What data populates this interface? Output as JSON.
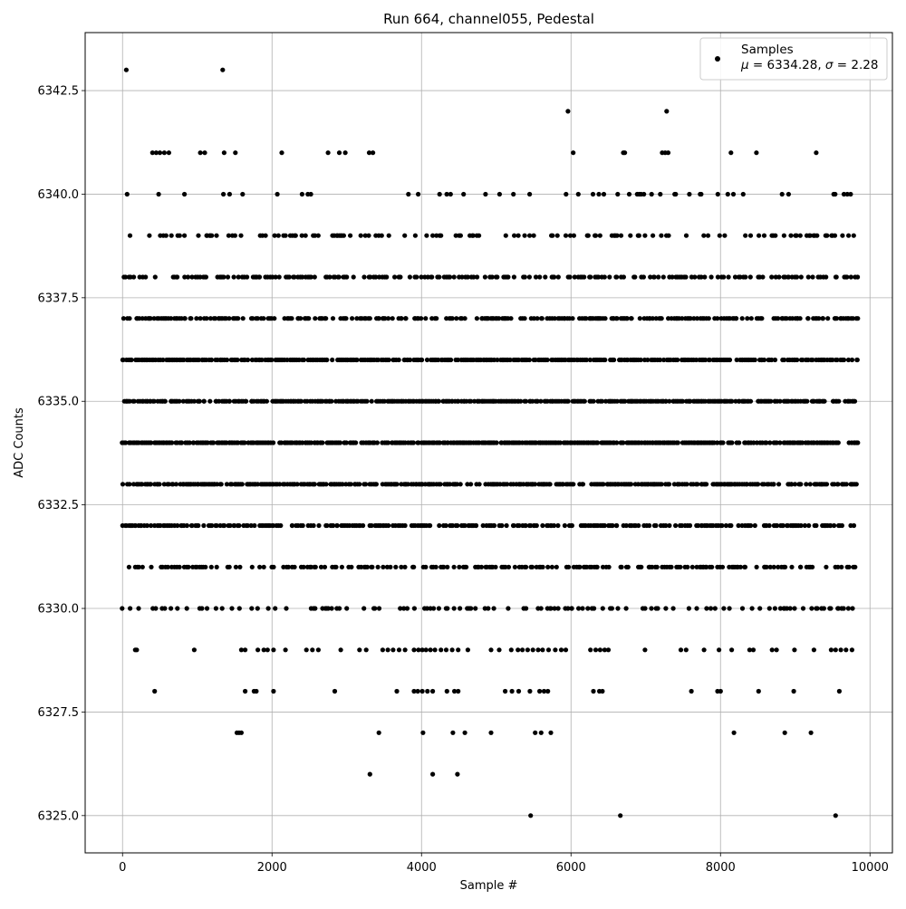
{
  "chart_data": {
    "type": "scatter",
    "title": "Run 664, channel055, Pedestal",
    "xlabel": "Sample #",
    "ylabel": "ADC Counts",
    "xlim": [
      -500,
      10300
    ],
    "ylim": [
      6324.1,
      6343.9
    ],
    "xticks": [
      0,
      2000,
      4000,
      6000,
      8000,
      10000
    ],
    "xtick_labels": [
      "0",
      "2000",
      "4000",
      "6000",
      "8000",
      "10000"
    ],
    "yticks": [
      6325.0,
      6327.5,
      6330.0,
      6332.5,
      6335.0,
      6337.5,
      6340.0,
      6342.5
    ],
    "ytick_labels": [
      "6325.0",
      "6327.5",
      "6330.0",
      "6332.5",
      "6335.0",
      "6337.5",
      "6340.0",
      "6342.5"
    ],
    "grid": true,
    "legend_position": "top-right",
    "series": [
      {
        "name": "Samples",
        "marker": "dot",
        "color": "#000000",
        "x_range": [
          0,
          9850
        ],
        "dense_levels": [
          {
            "y": 6330,
            "density": 0.22
          },
          {
            "y": 6331,
            "density": 0.4
          },
          {
            "y": 6332,
            "density": 0.55
          },
          {
            "y": 6333,
            "density": 0.7
          },
          {
            "y": 6334,
            "density": 0.8
          },
          {
            "y": 6335,
            "density": 0.75
          },
          {
            "y": 6336,
            "density": 0.7
          },
          {
            "y": 6337,
            "density": 0.55
          },
          {
            "y": 6338,
            "density": 0.4
          },
          {
            "y": 6339,
            "density": 0.25
          },
          {
            "y": 6340,
            "density": 0.12
          }
        ],
        "sparse_points": [
          [
            50,
            6343
          ],
          [
            1340,
            6343
          ],
          [
            5960,
            6342
          ],
          [
            7280,
            6342
          ],
          [
            400,
            6341
          ],
          [
            450,
            6341
          ],
          [
            500,
            6341
          ],
          [
            560,
            6341
          ],
          [
            620,
            6341
          ],
          [
            1040,
            6341
          ],
          [
            1100,
            6341
          ],
          [
            1360,
            6341
          ],
          [
            1510,
            6341
          ],
          [
            2130,
            6341
          ],
          [
            2750,
            6341
          ],
          [
            2900,
            6341
          ],
          [
            2980,
            6341
          ],
          [
            3300,
            6341
          ],
          [
            3350,
            6341
          ],
          [
            6030,
            6341
          ],
          [
            6700,
            6341
          ],
          [
            6720,
            6341
          ],
          [
            7220,
            6341
          ],
          [
            7260,
            6341
          ],
          [
            7300,
            6341
          ],
          [
            8140,
            6341
          ],
          [
            8480,
            6341
          ],
          [
            9280,
            6341
          ],
          [
            170,
            6329
          ],
          [
            190,
            6329
          ],
          [
            960,
            6329
          ],
          [
            1590,
            6329
          ],
          [
            1640,
            6329
          ],
          [
            1810,
            6329
          ],
          [
            1890,
            6329
          ],
          [
            1940,
            6329
          ],
          [
            2020,
            6329
          ],
          [
            2180,
            6329
          ],
          [
            2460,
            6329
          ],
          [
            2540,
            6329
          ],
          [
            2620,
            6329
          ],
          [
            2920,
            6329
          ],
          [
            3170,
            6329
          ],
          [
            3260,
            6329
          ],
          [
            3480,
            6329
          ],
          [
            3550,
            6329
          ],
          [
            3620,
            6329
          ],
          [
            3700,
            6329
          ],
          [
            3780,
            6329
          ],
          [
            3900,
            6329
          ],
          [
            3960,
            6329
          ],
          [
            4010,
            6329
          ],
          [
            4060,
            6329
          ],
          [
            4120,
            6329
          ],
          [
            4180,
            6329
          ],
          [
            4260,
            6329
          ],
          [
            4330,
            6329
          ],
          [
            4410,
            6329
          ],
          [
            4490,
            6329
          ],
          [
            4620,
            6329
          ],
          [
            4930,
            6329
          ],
          [
            5040,
            6329
          ],
          [
            5200,
            6329
          ],
          [
            5290,
            6329
          ],
          [
            5350,
            6329
          ],
          [
            5420,
            6329
          ],
          [
            5490,
            6329
          ],
          [
            5560,
            6329
          ],
          [
            5620,
            6329
          ],
          [
            5700,
            6329
          ],
          [
            5790,
            6329
          ],
          [
            5870,
            6329
          ],
          [
            5930,
            6329
          ],
          [
            6260,
            6329
          ],
          [
            6330,
            6329
          ],
          [
            6390,
            6329
          ],
          [
            6450,
            6329
          ],
          [
            6500,
            6329
          ],
          [
            6990,
            6329
          ],
          [
            7470,
            6329
          ],
          [
            7540,
            6329
          ],
          [
            7780,
            6329
          ],
          [
            7980,
            6329
          ],
          [
            8150,
            6329
          ],
          [
            8390,
            6329
          ],
          [
            8440,
            6329
          ],
          [
            8690,
            6329
          ],
          [
            8750,
            6329
          ],
          [
            8990,
            6329
          ],
          [
            9250,
            6329
          ],
          [
            9480,
            6329
          ],
          [
            9540,
            6329
          ],
          [
            9610,
            6329
          ],
          [
            9680,
            6329
          ],
          [
            9760,
            6329
          ],
          [
            430,
            6328
          ],
          [
            1640,
            6328
          ],
          [
            1760,
            6328
          ],
          [
            1790,
            6328
          ],
          [
            2020,
            6328
          ],
          [
            2840,
            6328
          ],
          [
            3670,
            6328
          ],
          [
            3900,
            6328
          ],
          [
            3950,
            6328
          ],
          [
            4010,
            6328
          ],
          [
            4080,
            6328
          ],
          [
            4150,
            6328
          ],
          [
            4340,
            6328
          ],
          [
            4440,
            6328
          ],
          [
            4490,
            6328
          ],
          [
            5120,
            6328
          ],
          [
            5210,
            6328
          ],
          [
            5300,
            6328
          ],
          [
            5450,
            6328
          ],
          [
            5580,
            6328
          ],
          [
            5640,
            6328
          ],
          [
            5690,
            6328
          ],
          [
            6300,
            6328
          ],
          [
            6380,
            6328
          ],
          [
            6420,
            6328
          ],
          [
            7610,
            6328
          ],
          [
            7960,
            6328
          ],
          [
            8000,
            6328
          ],
          [
            8510,
            6328
          ],
          [
            8980,
            6328
          ],
          [
            9590,
            6328
          ],
          [
            1530,
            6327
          ],
          [
            1560,
            6327
          ],
          [
            1590,
            6327
          ],
          [
            3430,
            6327
          ],
          [
            4020,
            6327
          ],
          [
            4420,
            6327
          ],
          [
            4580,
            6327
          ],
          [
            4930,
            6327
          ],
          [
            5520,
            6327
          ],
          [
            5600,
            6327
          ],
          [
            5730,
            6327
          ],
          [
            8180,
            6327
          ],
          [
            8860,
            6327
          ],
          [
            9210,
            6327
          ],
          [
            3310,
            6326
          ],
          [
            4150,
            6326
          ],
          [
            4480,
            6326
          ],
          [
            5460,
            6325
          ],
          [
            6660,
            6325
          ],
          [
            9540,
            6325
          ]
        ]
      }
    ]
  },
  "legend": {
    "label": "Samples",
    "stats": "μ = 6334.28, σ = 2.28",
    "mu_symbol": "μ",
    "mu_text": " = 6334.28, ",
    "sigma_symbol": "σ",
    "sigma_text": " = 2.28"
  }
}
